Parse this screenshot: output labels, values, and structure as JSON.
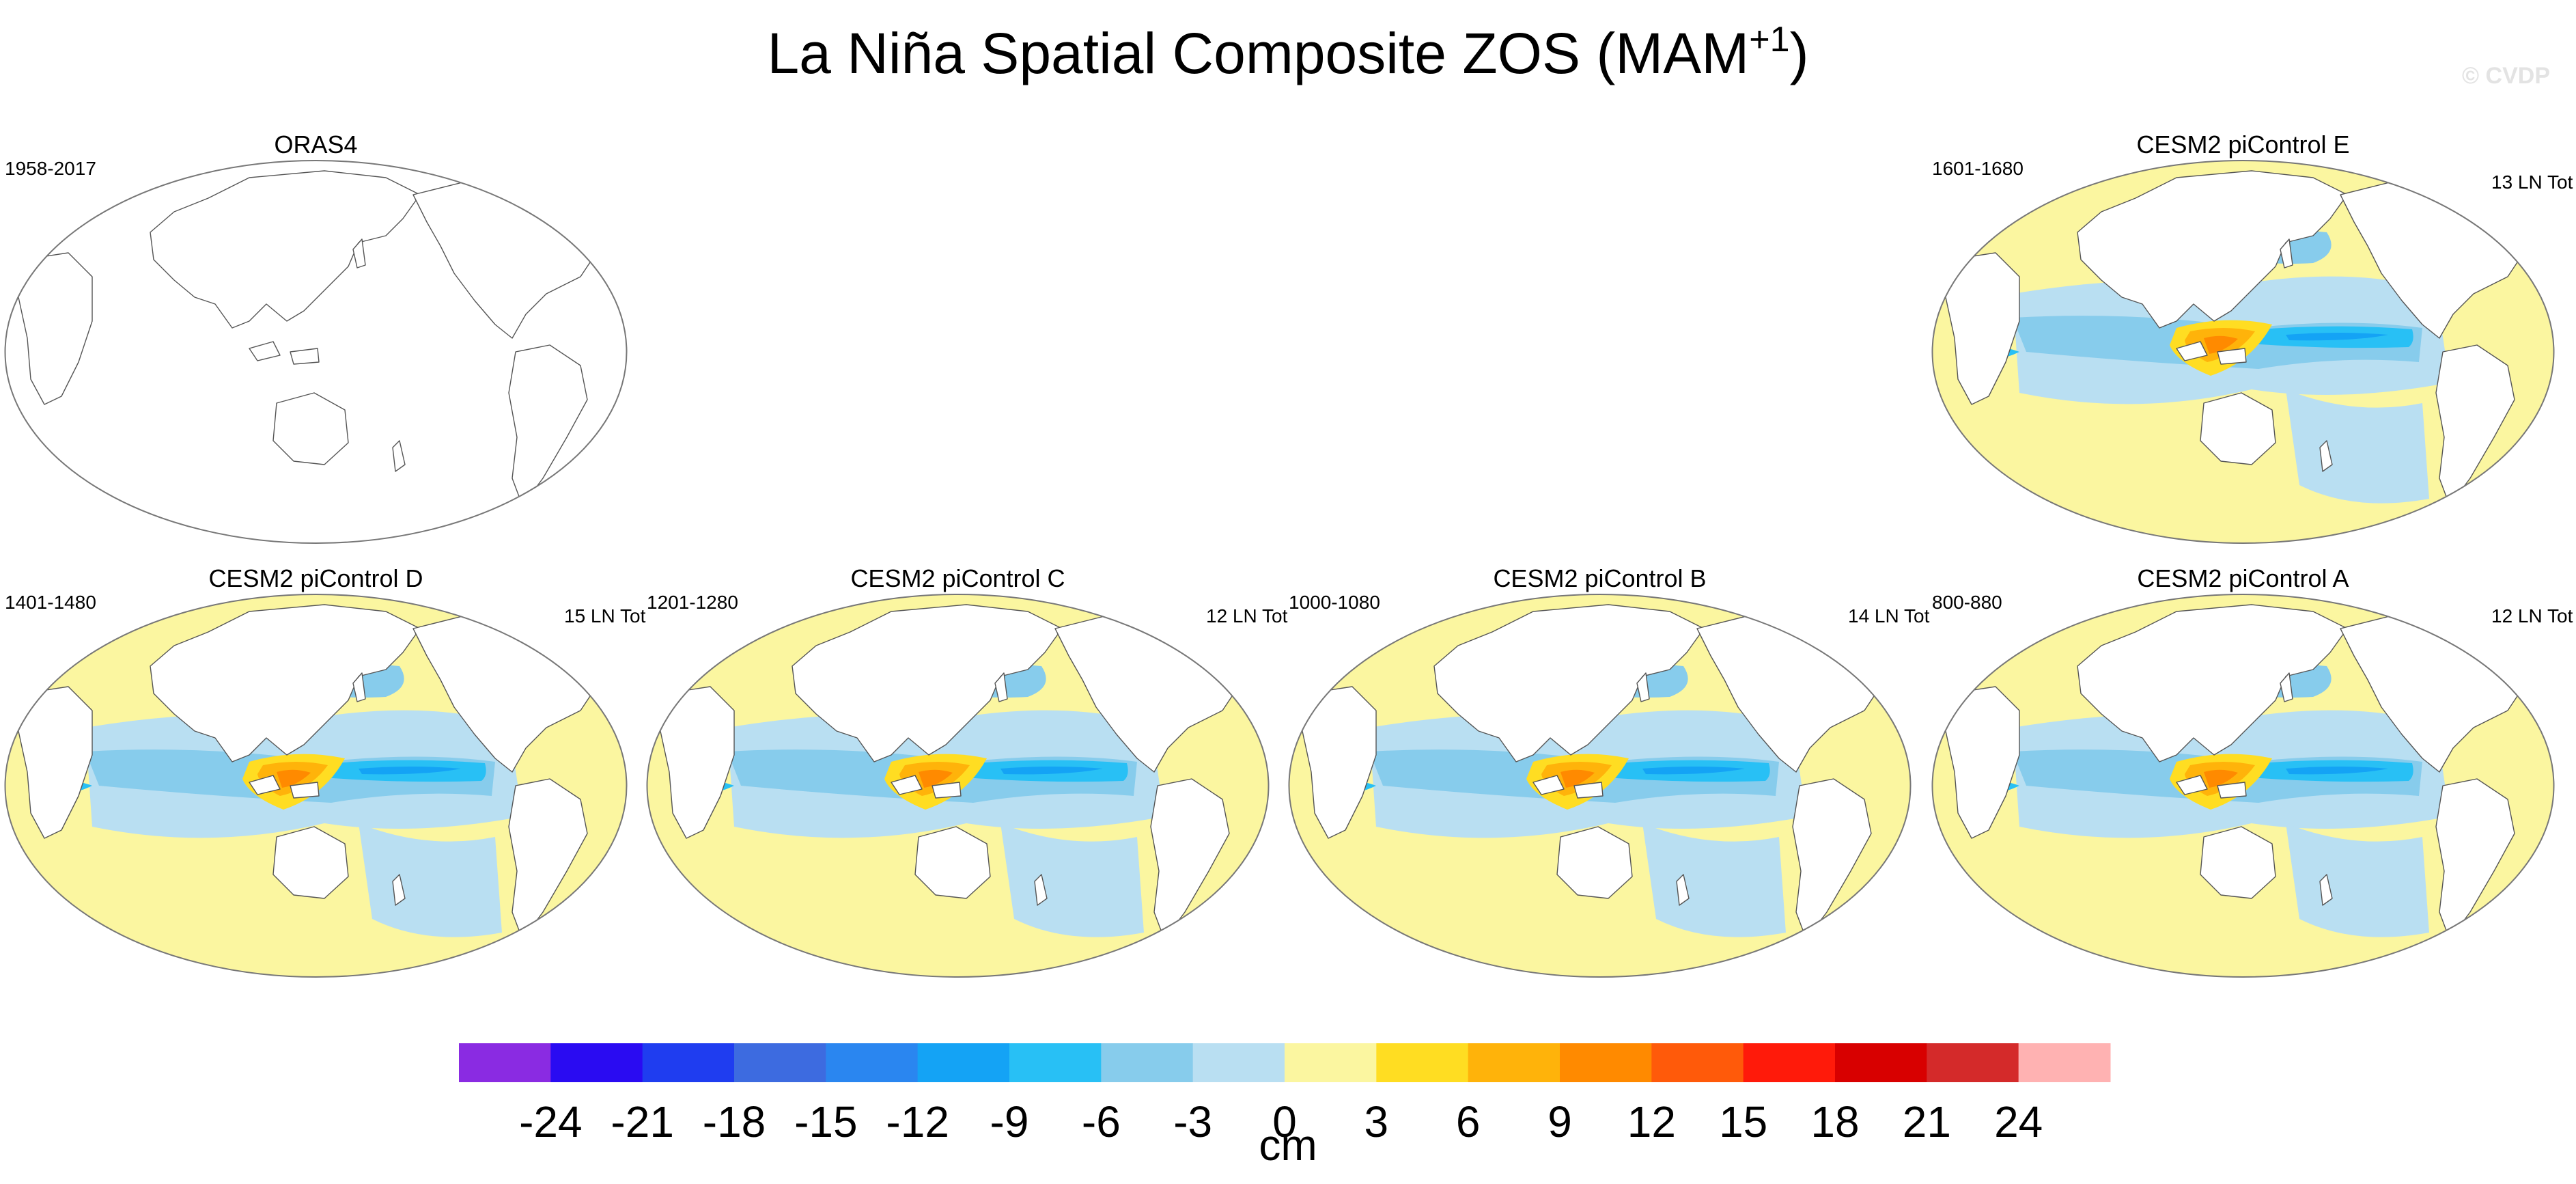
{
  "figure": {
    "title_main": "La Niña Spatial Composite ZOS (MAM",
    "title_sup": "+1",
    "title_end": ")",
    "watermark": "© CVDP"
  },
  "panels": [
    {
      "id": "orsa4",
      "title": "ORAS4",
      "years": "1958-2017",
      "count": "",
      "has_data": false
    },
    {
      "id": "cesm2-e",
      "title": "CESM2 piControl E",
      "years": "1601-1680",
      "count": "13 LN Tot",
      "has_data": true
    },
    {
      "id": "cesm2-d",
      "title": "CESM2 piControl D",
      "years": "1401-1480",
      "count": "15 LN Tot",
      "has_data": true
    },
    {
      "id": "cesm2-c",
      "title": "CESM2 piControl C",
      "years": "1201-1280",
      "count": "12 LN Tot",
      "has_data": true
    },
    {
      "id": "cesm2-b",
      "title": "CESM2 piControl B",
      "years": "1000-1080",
      "count": "14 LN Tot",
      "has_data": true
    },
    {
      "id": "cesm2-a",
      "title": "CESM2 piControl A",
      "years": "800-880",
      "count": "12 LN Tot",
      "has_data": true
    }
  ],
  "colorbar": {
    "unit": "cm",
    "labels": [
      "-24",
      "-21",
      "-18",
      "-15",
      "-12",
      "-9",
      "-6",
      "-3",
      "0",
      "3",
      "6",
      "9",
      "12",
      "15",
      "18",
      "21",
      "24"
    ],
    "colors": [
      "#8a2be2",
      "#2a0bf2",
      "#1f3df0",
      "#3d6be0",
      "#2a86f0",
      "#14a3f5",
      "#28c0f5",
      "#87ccec",
      "#b9dff2",
      "#fbf6a0",
      "#ffdd22",
      "#ffb30a",
      "#ff8a00",
      "#ff5a0a",
      "#ff1a0a",
      "#d80000",
      "#d42a2a",
      "#ffb2b2"
    ]
  },
  "style": {
    "ocean_light_blue": "#b9dff2",
    "ocean_blue": "#87ccec",
    "deep_blue": "#28c0f5",
    "bright_blue": "#14a3f5",
    "yellow": "#fbf6a0",
    "gold": "#ffdd22",
    "orange": "#ffb30a",
    "dark_orange": "#ff8a00",
    "land": "#ffffff",
    "coast": "#555555"
  }
}
